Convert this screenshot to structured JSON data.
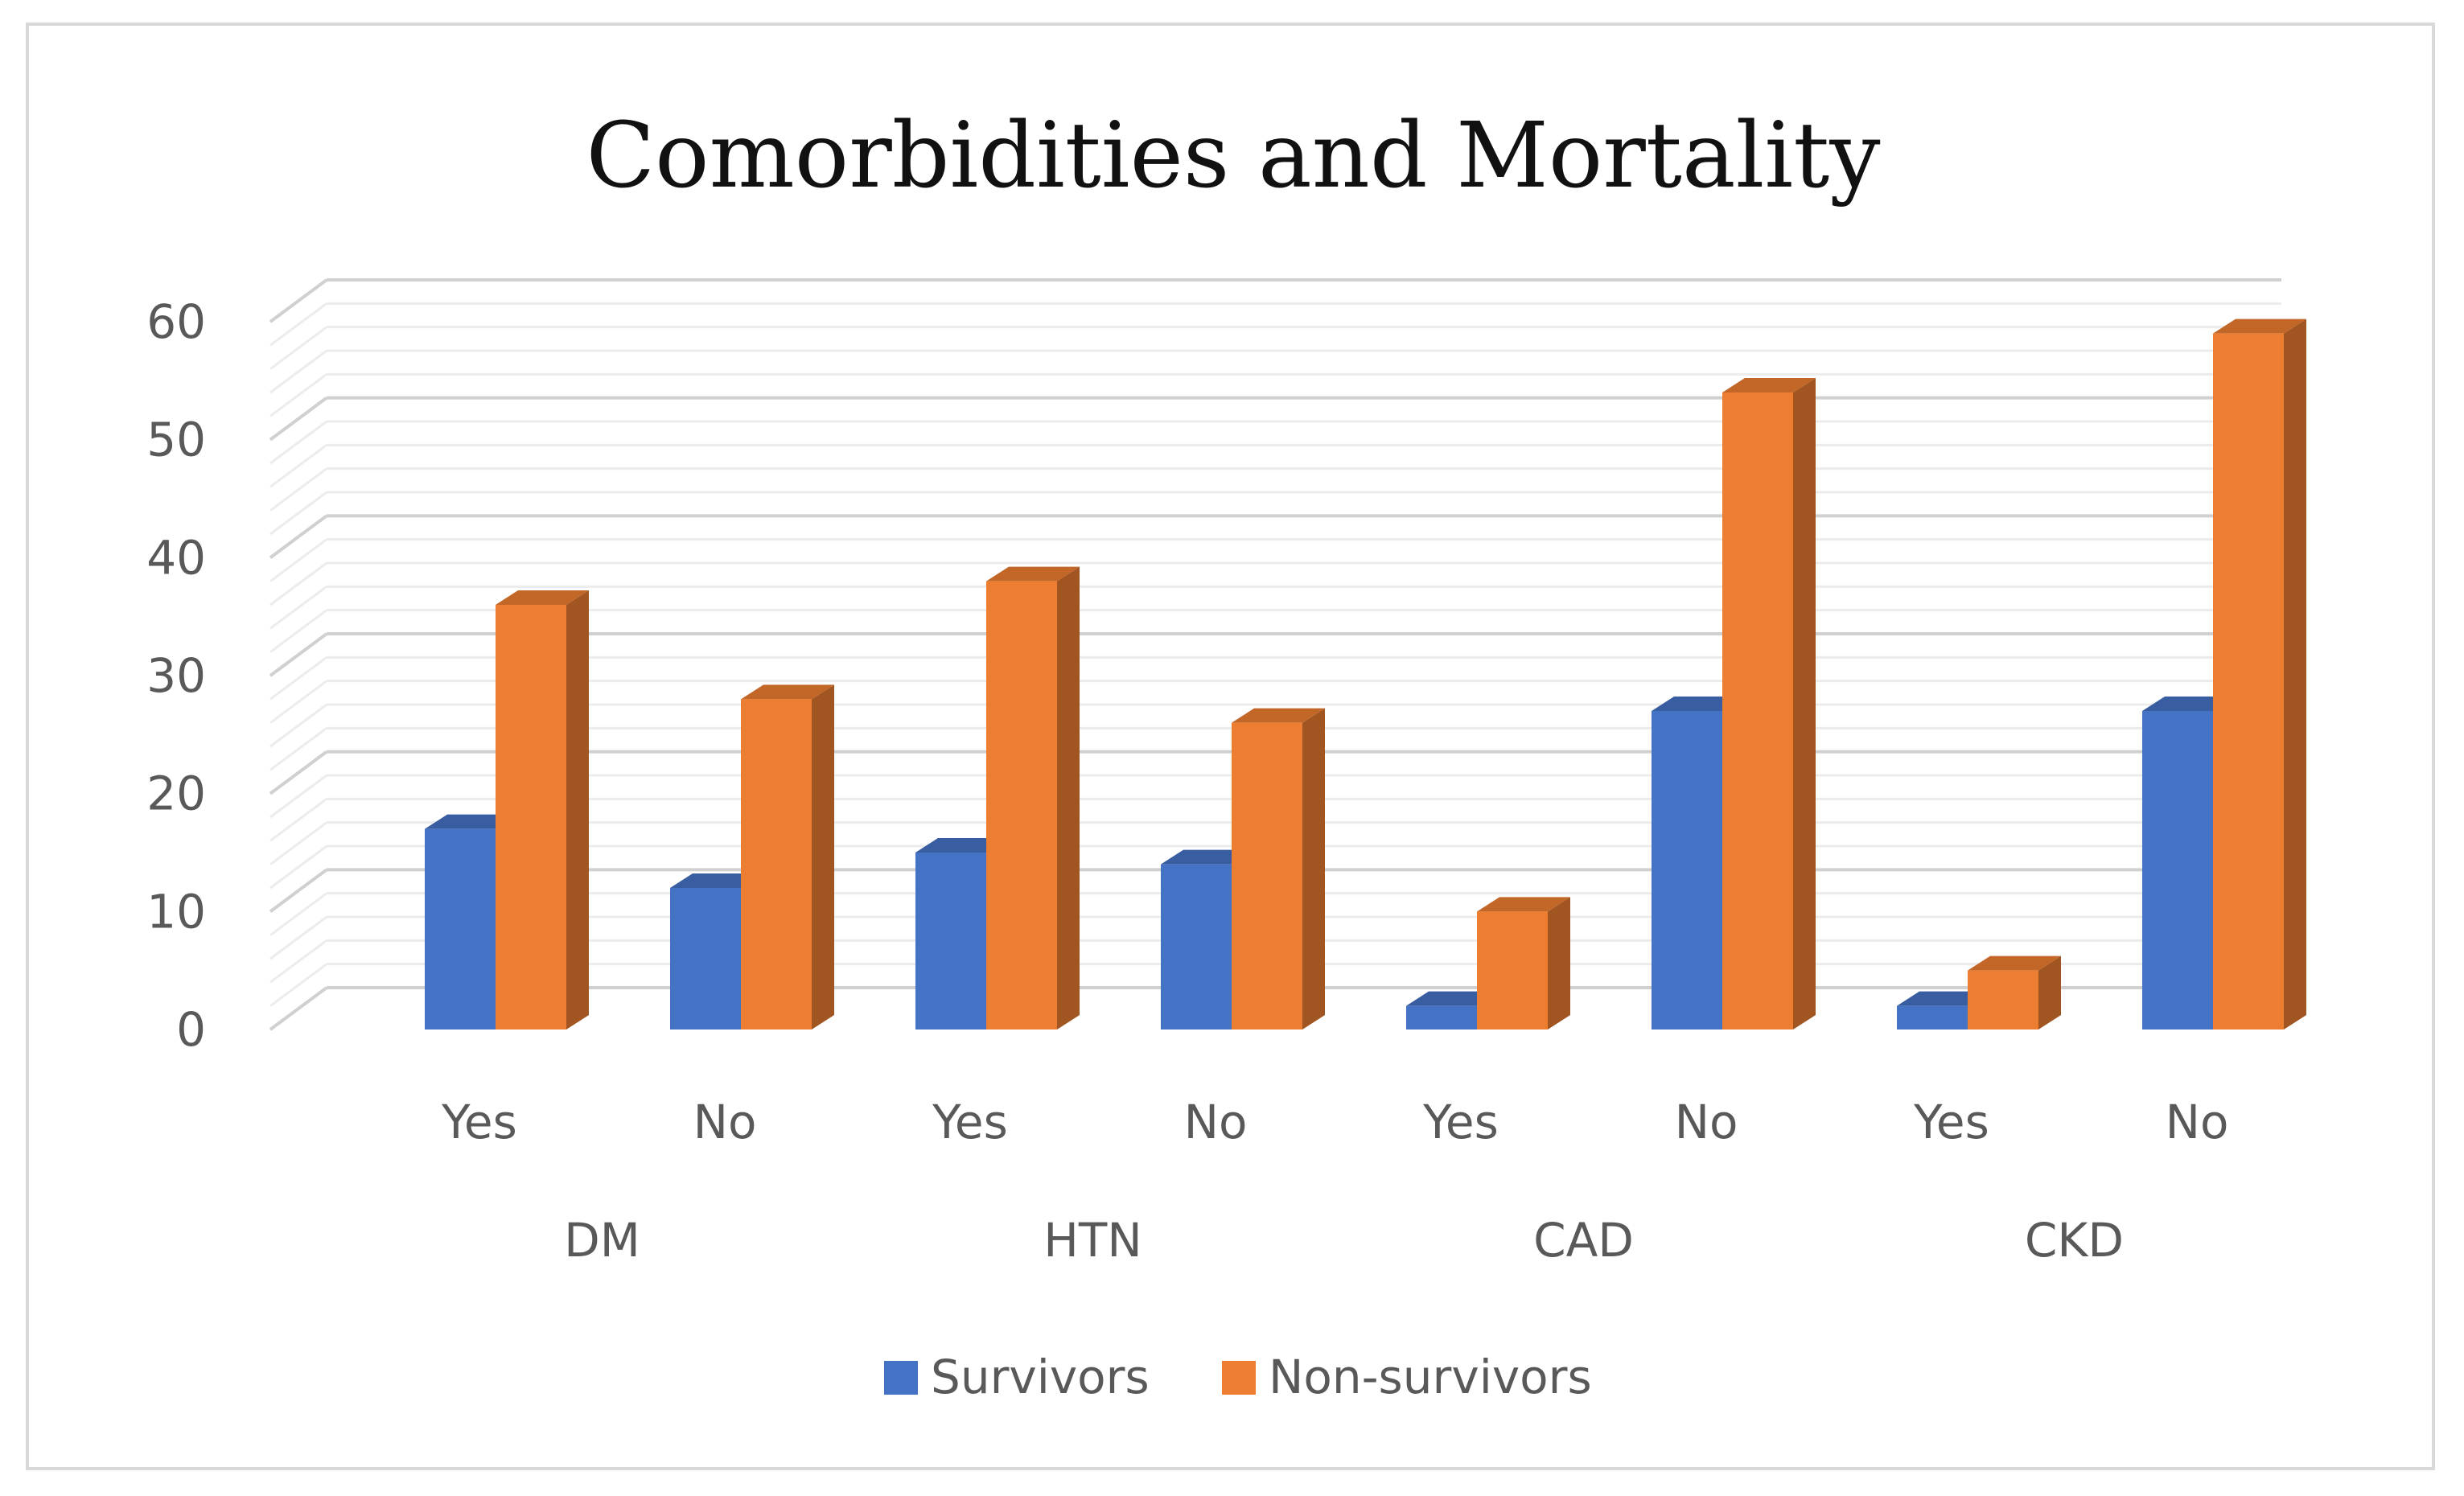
{
  "chart_data": {
    "type": "bar",
    "title": "Comorbidities and Mortality",
    "groups": [
      {
        "label": "DM",
        "subcategories": [
          "Yes",
          "No"
        ]
      },
      {
        "label": "HTN",
        "subcategories": [
          "Yes",
          "No"
        ]
      },
      {
        "label": "CAD",
        "subcategories": [
          "Yes",
          "No"
        ]
      },
      {
        "label": "CKD",
        "subcategories": [
          "Yes",
          "No"
        ]
      }
    ],
    "categories": [
      "DM Yes",
      "DM No",
      "HTN Yes",
      "HTN No",
      "CAD Yes",
      "CAD No",
      "CKD Yes",
      "CKD No"
    ],
    "series": [
      {
        "name": "Survivors",
        "color": "#4472c4",
        "values": [
          17,
          12,
          15,
          14,
          2,
          27,
          2,
          27
        ]
      },
      {
        "name": "Non-survivors",
        "color": "#ed7d31",
        "values": [
          36,
          28,
          38,
          26,
          10,
          54,
          5,
          59
        ]
      }
    ],
    "yticks": [
      "0",
      "10",
      "20",
      "30",
      "40",
      "50",
      "60"
    ],
    "ylim": [
      0,
      60
    ],
    "grid": true,
    "legend_position": "bottom",
    "style": "3d-clustered-column"
  }
}
